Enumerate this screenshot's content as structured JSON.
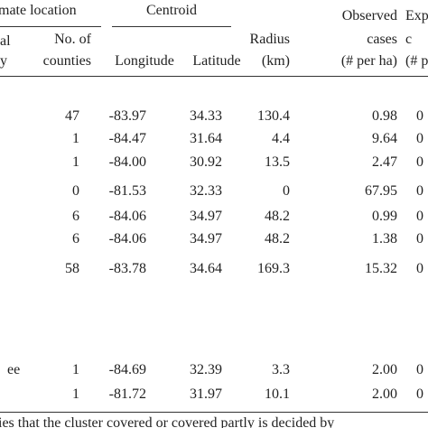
{
  "header": {
    "groups": [
      "mate location",
      "Centroid"
    ],
    "columns": [
      [
        "al",
        "y"
      ],
      [
        "No. of",
        "counties"
      ],
      [
        "Longitude"
      ],
      [
        "Latitude"
      ],
      [
        "Radius",
        "(km)"
      ],
      [
        "Observed",
        "cases",
        "(# per ha)"
      ],
      [
        "Exp",
        "c",
        "(# p"
      ]
    ]
  },
  "rows": [
    {
      "cells": [
        "47",
        "-83.97",
        "34.33",
        "130.4",
        "0.98",
        "0"
      ]
    },
    {
      "cells": [
        "1",
        "-84.47",
        "31.64",
        "4.4",
        "9.64",
        "0"
      ]
    },
    {
      "cells": [
        "1",
        "-84.00",
        "30.92",
        "13.5",
        "2.47",
        "0"
      ]
    },
    {
      "cells": [
        "0",
        "-81.53",
        "32.33",
        "0",
        "67.95",
        "0"
      ]
    },
    {
      "cells": [
        "6",
        "-84.06",
        "34.97",
        "48.2",
        "0.99",
        "0"
      ]
    },
    {
      "cells": [
        "6",
        "-84.06",
        "34.97",
        "48.2",
        "1.38",
        "0"
      ]
    },
    {
      "cells": [
        "58",
        "-83.78",
        "34.64",
        "169.3",
        "15.32",
        "0"
      ]
    },
    {
      "label": "ee",
      "cells": [
        "1",
        "-84.69",
        "32.39",
        "3.3",
        "2.00",
        "0"
      ]
    },
    {
      "cells": [
        "1",
        "-81.72",
        "31.97",
        "10.1",
        "2.00",
        "0"
      ]
    }
  ],
  "footnote": "ies that the cluster covered or covered partly is decided by"
}
